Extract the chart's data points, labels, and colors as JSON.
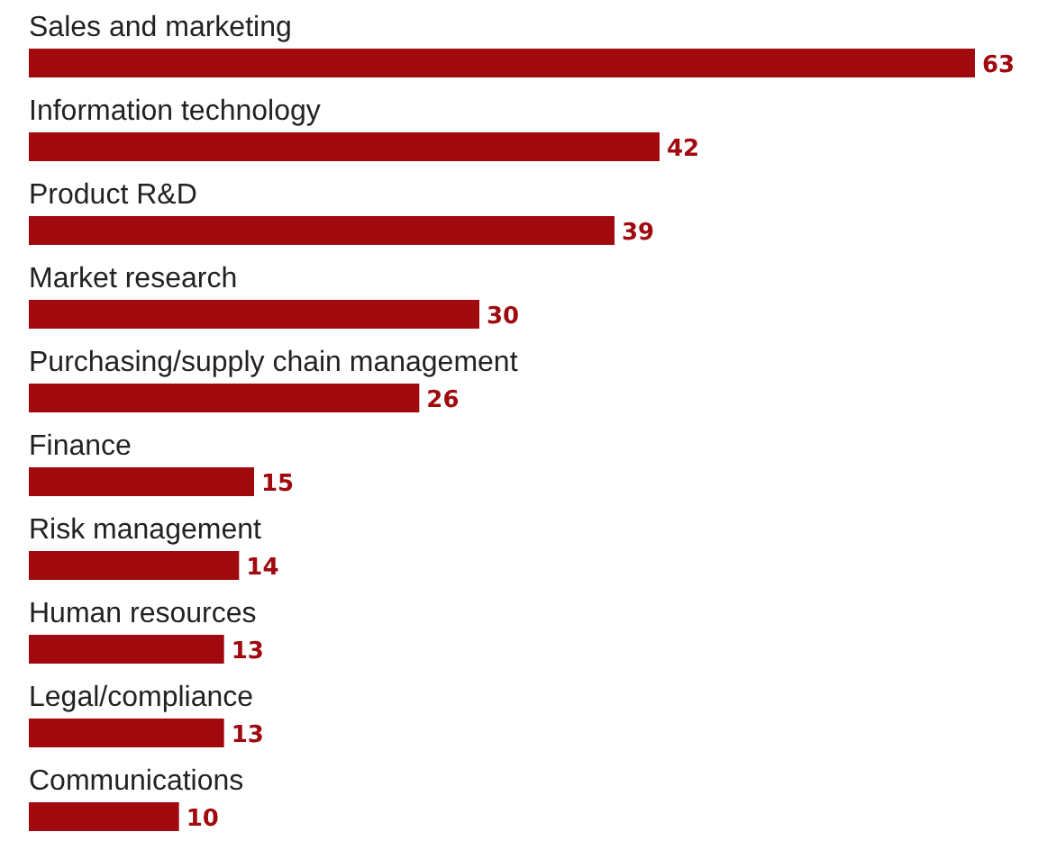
{
  "chart_data": {
    "type": "bar",
    "orientation": "horizontal",
    "tick_labels": false,
    "data_labels": true,
    "color": "#a0090e",
    "categories": [
      "Sales and marketing",
      "Information technology",
      "Product R&D",
      "Market research",
      "Purchasing/supply chain management",
      "Finance",
      "Risk management",
      "Human resources",
      "Legal/compliance",
      "Communications"
    ],
    "values": [
      63,
      42,
      39,
      30,
      26,
      15,
      14,
      13,
      13,
      10
    ]
  }
}
